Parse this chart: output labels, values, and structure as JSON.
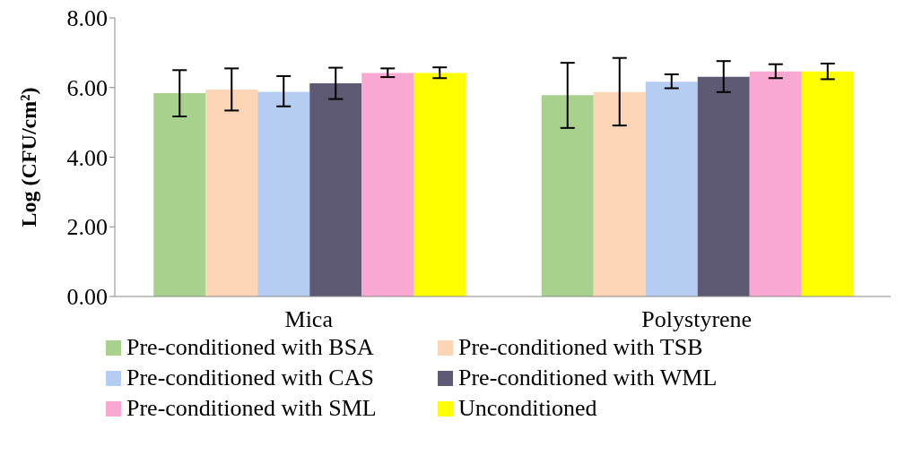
{
  "chart_data": {
    "type": "bar",
    "ylabel": "Log (CFU/cm²)",
    "categories": [
      "Mica",
      "Polystyrene"
    ],
    "series": [
      {
        "name": "Pre-conditioned with BSA",
        "color": "#a9d18e",
        "values": [
          5.84,
          5.78
        ],
        "errors": [
          [
            5.17,
            6.5
          ],
          [
            4.84,
            6.71
          ]
        ]
      },
      {
        "name": "Pre-conditioned with TSB",
        "color": "#fbd5b5",
        "values": [
          5.94,
          5.87
        ],
        "errors": [
          [
            5.34,
            6.55
          ],
          [
            4.91,
            6.85
          ]
        ]
      },
      {
        "name": "Pre-conditioned with CAS",
        "color": "#b4cdf0",
        "values": [
          5.88,
          6.17
        ],
        "errors": [
          [
            5.46,
            6.33
          ],
          [
            5.98,
            6.38
          ]
        ]
      },
      {
        "name": "Pre-conditioned with WML",
        "color": "#5f5a73",
        "values": [
          6.12,
          6.31
        ],
        "errors": [
          [
            5.67,
            6.57
          ],
          [
            5.87,
            6.76
          ]
        ]
      },
      {
        "name": "Pre-conditioned with SML",
        "color": "#f9a8d4",
        "values": [
          6.42,
          6.46
        ],
        "errors": [
          [
            6.3,
            6.55
          ],
          [
            6.27,
            6.67
          ]
        ]
      },
      {
        "name": "Unconditioned",
        "color": "#ffff00",
        "values": [
          6.42,
          6.46
        ],
        "errors": [
          [
            6.27,
            6.58
          ],
          [
            6.24,
            6.69
          ]
        ]
      }
    ],
    "ylim": [
      0,
      8
    ],
    "yticks": [
      {
        "value": 0,
        "label": "0.00"
      },
      {
        "value": 2,
        "label": "2.00"
      },
      {
        "value": 4,
        "label": "4.00"
      },
      {
        "value": 6,
        "label": "6.00"
      },
      {
        "value": 8,
        "label": "8.00"
      }
    ],
    "grid": false,
    "legend": "bottom"
  }
}
